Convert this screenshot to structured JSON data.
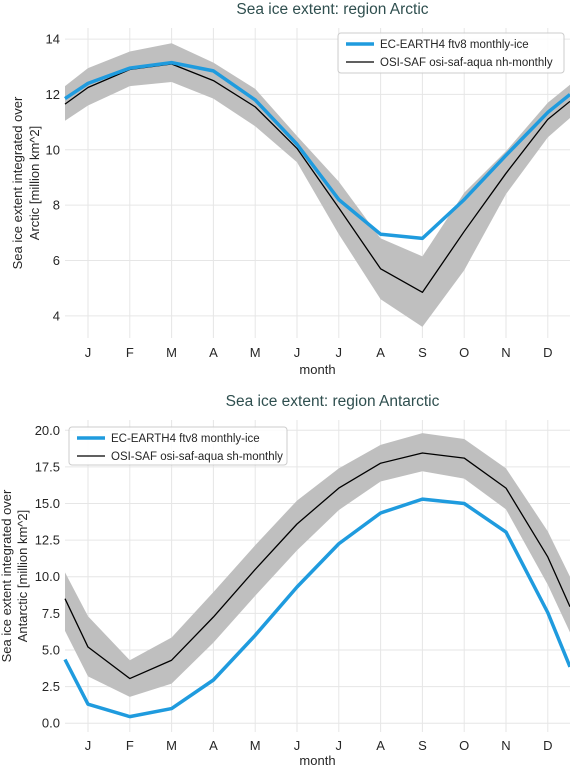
{
  "colors": {
    "model": "#1f9bde",
    "obs": "#000000",
    "band": "#bfbfbf",
    "grid": "#e6e6e6",
    "title": "#2f4f4f"
  },
  "chart_data": [
    {
      "id": "arctic",
      "type": "line",
      "title": "Sea ice extent: region Arctic",
      "xlabel": "month",
      "ylabel_lines": [
        "Sea ice extent integrated over",
        "Arctic [million km^2]"
      ],
      "categories": [
        "J",
        "F",
        "M",
        "A",
        "M",
        "J",
        "J",
        "A",
        "S",
        "O",
        "N",
        "D"
      ],
      "ylim": [
        3.2,
        14.4
      ],
      "yticks": [
        4,
        6,
        8,
        10,
        12,
        14
      ],
      "ytick_labels": [
        "4",
        "6",
        "8",
        "10",
        "12",
        "14"
      ],
      "grid": true,
      "legend_position": "top-right",
      "series": [
        {
          "name": "EC-EARTH4 ftv8 monthly-ice",
          "role": "model",
          "values": [
            12.4,
            12.95,
            13.15,
            12.85,
            11.8,
            10.2,
            8.2,
            6.95,
            6.8,
            8.2,
            9.8,
            11.35
          ]
        },
        {
          "name": "OSI-SAF osi-saf-aqua nh-monthly",
          "role": "obs",
          "values": [
            12.25,
            12.9,
            13.1,
            12.5,
            11.55,
            10.05,
            7.9,
            5.7,
            4.85,
            7.05,
            9.15,
            11.1
          ],
          "band_low": [
            11.6,
            12.3,
            12.45,
            11.85,
            10.85,
            9.55,
            6.95,
            4.6,
            3.6,
            5.65,
            8.4,
            10.45
          ],
          "band_high": [
            12.95,
            13.55,
            13.85,
            13.15,
            12.2,
            10.5,
            8.85,
            6.8,
            6.15,
            8.45,
            9.95,
            11.7
          ]
        }
      ],
      "edges": {
        "model": [
          11.85,
          12.0
        ],
        "obs": [
          11.65,
          11.75
        ],
        "band_low": [
          11.05,
          11.15
        ],
        "band_high": [
          12.3,
          12.35
        ]
      }
    },
    {
      "id": "antarctic",
      "type": "line",
      "title": "Sea ice extent: region Antarctic",
      "xlabel": "month",
      "ylabel_lines": [
        "Sea ice extent integrated over",
        "Antarctic [million km^2]"
      ],
      "categories": [
        "J",
        "F",
        "M",
        "A",
        "M",
        "J",
        "J",
        "A",
        "S",
        "O",
        "N",
        "D"
      ],
      "ylim": [
        -0.6,
        20.7
      ],
      "yticks": [
        0.0,
        2.5,
        5.0,
        7.5,
        10.0,
        12.5,
        15.0,
        17.5,
        20.0
      ],
      "ytick_labels": [
        "0.0",
        "2.5",
        "5.0",
        "7.5",
        "10.0",
        "12.5",
        "15.0",
        "17.5",
        "20.0"
      ],
      "grid": true,
      "legend_position": "top-left",
      "series": [
        {
          "name": "EC-EARTH4 ftv8 monthly-ice",
          "role": "model",
          "values": [
            1.3,
            0.45,
            1.0,
            2.95,
            6.0,
            9.3,
            12.25,
            14.35,
            15.3,
            15.0,
            13.05,
            7.55
          ]
        },
        {
          "name": "OSI-SAF osi-saf-aqua sh-monthly",
          "role": "obs",
          "values": [
            5.2,
            3.05,
            4.3,
            7.25,
            10.5,
            13.6,
            16.05,
            17.75,
            18.45,
            18.1,
            16.05,
            11.35
          ],
          "band_low": [
            3.2,
            1.8,
            2.7,
            5.5,
            8.7,
            11.8,
            14.55,
            16.5,
            17.2,
            16.7,
            14.6,
            9.45
          ],
          "band_high": [
            7.3,
            4.3,
            5.85,
            8.95,
            12.15,
            15.2,
            17.4,
            19.0,
            19.8,
            19.4,
            17.4,
            13.1
          ]
        }
      ],
      "edges": {
        "model": [
          4.35,
          3.85
        ],
        "obs": [
          8.5,
          7.95
        ],
        "band_low": [
          6.3,
          6.2
        ],
        "band_high": [
          10.3,
          10.0
        ]
      }
    }
  ]
}
